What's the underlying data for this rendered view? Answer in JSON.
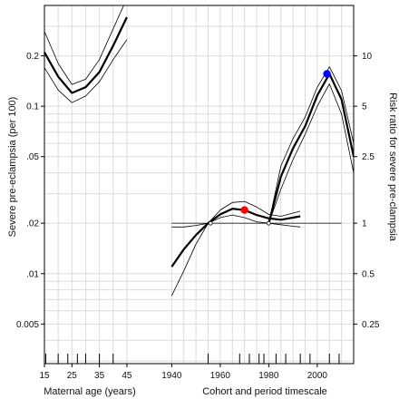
{
  "chart_data": {
    "type": "line",
    "title": "",
    "grid": true,
    "ylabel_left": "Severe pre-eclampsia (per 100)",
    "ylabel_right": "Risk ratio for severe pre-clampsia",
    "y_scale": "log",
    "ylim_left": [
      0.0029,
      0.4
    ],
    "ylim_right": [
      0.145,
      20
    ],
    "ref_rate": 0.02,
    "ref_rr": 1,
    "left_ticks": [
      {
        "value": 0.2,
        "label": "0.2"
      },
      {
        "value": 0.1,
        "label": "0.1"
      },
      {
        "value": 0.05,
        "label": ".05"
      },
      {
        "value": 0.02,
        "label": ".02"
      },
      {
        "value": 0.01,
        "label": ".01"
      },
      {
        "value": 0.005,
        "label": "0.005"
      }
    ],
    "right_ticks": [
      {
        "value": 10,
        "label": "10"
      },
      {
        "value": 5,
        "label": "5"
      },
      {
        "value": 2.5,
        "label": "2.5"
      },
      {
        "value": 1,
        "label": "1"
      },
      {
        "value": 0.5,
        "label": "0.5"
      },
      {
        "value": 0.25,
        "label": "0.25"
      }
    ],
    "age_panel": {
      "xlabel": "Maternal age (years)",
      "xlim": [
        15,
        48
      ],
      "x_ticks": [
        {
          "value": 15,
          "label": "15"
        },
        {
          "value": 25,
          "label": "25"
        },
        {
          "value": 35,
          "label": "35"
        },
        {
          "value": 45,
          "label": "45"
        }
      ],
      "rug": [
        15.5,
        20,
        23.5,
        27,
        30,
        35,
        40
      ],
      "series": [
        {
          "role": "estimate",
          "x": [
            15,
            20,
            25,
            30,
            35,
            40,
            45
          ],
          "y": [
            0.21,
            0.15,
            0.12,
            0.13,
            0.16,
            0.23,
            0.34
          ]
        },
        {
          "role": "ci-upper",
          "x": [
            15,
            20,
            25,
            30,
            35,
            40,
            45
          ],
          "y": [
            0.28,
            0.18,
            0.135,
            0.145,
            0.19,
            0.29,
            0.44
          ]
        },
        {
          "role": "ci-lower",
          "x": [
            15,
            20,
            25,
            30,
            35,
            40,
            45
          ],
          "y": [
            0.17,
            0.125,
            0.105,
            0.115,
            0.14,
            0.19,
            0.25
          ]
        }
      ]
    },
    "time_panel": {
      "xlabel": "Cohort and period timescale",
      "xlim": [
        1935,
        2015
      ],
      "x_ticks": [
        {
          "value": 1940,
          "label": "1940"
        },
        {
          "value": 1960,
          "label": "1960"
        },
        {
          "value": 1980,
          "label": "1980"
        },
        {
          "value": 2000,
          "label": "2000"
        }
      ],
      "rug": [
        1955,
        1968,
        1972,
        1976,
        1978,
        1983,
        1987,
        1993,
        1997,
        2005,
        2009
      ],
      "series": [
        {
          "role": "cohort-estimate",
          "x": [
            1940,
            1945,
            1950,
            1955,
            1960,
            1965,
            1970,
            1975,
            1980,
            1985,
            1990,
            1993
          ],
          "y": [
            0.55,
            0.7,
            0.85,
            1.0,
            1.13,
            1.22,
            1.2,
            1.12,
            1.07,
            1.05,
            1.08,
            1.1
          ]
        },
        {
          "role": "cohort-ci-upper",
          "x": [
            1940,
            1945,
            1950,
            1955,
            1960,
            1965,
            1970,
            1975,
            1980,
            1985,
            1990,
            1993
          ],
          "y": [
            0.95,
            0.95,
            0.97,
            1.0,
            1.2,
            1.33,
            1.35,
            1.25,
            1.13,
            1.1,
            1.15,
            1.18
          ]
        },
        {
          "role": "cohort-ci-lower",
          "x": [
            1940,
            1945,
            1950,
            1955,
            1960,
            1965,
            1970,
            1975,
            1980,
            1985,
            1990,
            1993
          ],
          "y": [
            0.37,
            0.52,
            0.75,
            1.0,
            1.08,
            1.12,
            1.08,
            1.02,
            1.0,
            0.98,
            0.96,
            0.95
          ]
        },
        {
          "role": "period-estimate",
          "x": [
            1980,
            1985,
            1990,
            1995,
            2000,
            2005,
            2010,
            2015
          ],
          "y": [
            1.0,
            1.9,
            2.8,
            3.8,
            5.8,
            7.8,
            5.5,
            2.5
          ]
        },
        {
          "role": "period-ci-upper",
          "x": [
            1980,
            1985,
            1990,
            1995,
            2000,
            2005,
            2010,
            2015
          ],
          "y": [
            1.0,
            2.2,
            3.2,
            4.3,
            6.5,
            8.6,
            6.2,
            3.0
          ]
        },
        {
          "role": "period-ci-lower",
          "x": [
            1980,
            1985,
            1990,
            1995,
            2000,
            2005,
            2010,
            2015
          ],
          "y": [
            1.0,
            1.6,
            2.4,
            3.4,
            5.0,
            6.8,
            4.5,
            2.0
          ]
        }
      ],
      "reference_points": [
        {
          "x": 1956,
          "rr": 1.0
        },
        {
          "x": 1980,
          "rr": 1.0
        }
      ],
      "highlight_points": [
        {
          "x": 1970,
          "rr": 1.2,
          "color": "#ff0000"
        },
        {
          "x": 2004,
          "rr": 7.8,
          "color": "#0000ff"
        }
      ]
    }
  }
}
